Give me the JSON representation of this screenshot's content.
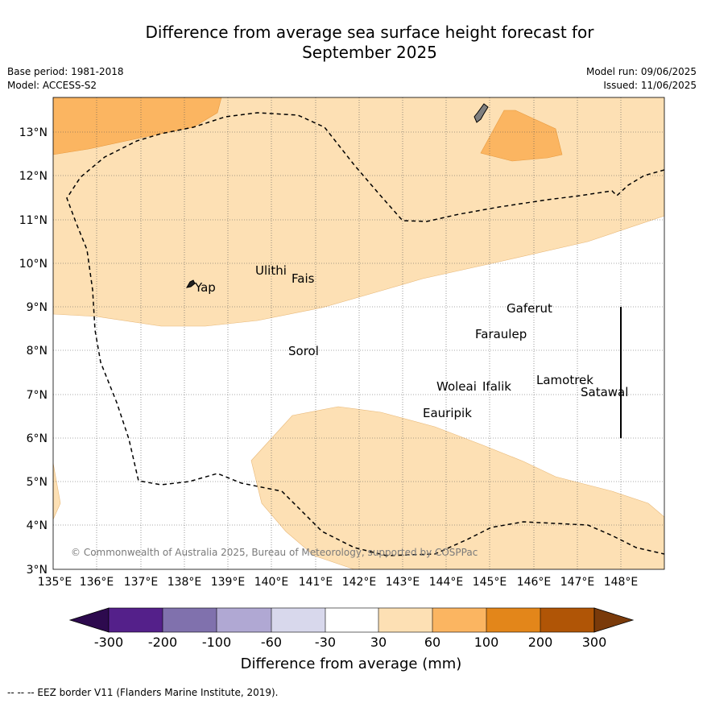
{
  "title_line1": "Difference from average sea surface height forecast for",
  "title_line2": "September 2025",
  "base_period": "Base period: 1981-2018",
  "model": "Model: ACCESS-S2",
  "model_run": "Model run: 09/06/2025",
  "issued": "Issued: 11/06/2025",
  "copyright": "© Commonwealth of Australia 2025, Bureau of Meteorology, supported by COSPPac",
  "footnote": "--  --  -- EEZ border V11 (Flanders Marine Institute, 2019).",
  "map": {
    "lon_range": [
      135,
      149
    ],
    "lat_range": [
      3,
      13.8
    ],
    "lon_ticks": [
      "135°E",
      "136°E",
      "137°E",
      "138°E",
      "139°E",
      "140°E",
      "141°E",
      "142°E",
      "143°E",
      "144°E",
      "145°E",
      "146°E",
      "147°E",
      "148°E"
    ],
    "lat_ticks": [
      "3°N",
      "4°N",
      "5°N",
      "6°N",
      "7°N",
      "8°N",
      "9°N",
      "10°N",
      "11°N",
      "12°N",
      "13°N"
    ],
    "places": [
      {
        "name": "Yap",
        "lon": 138.3,
        "lat": 9.45
      },
      {
        "name": "Ulithi",
        "lon": 139.6,
        "lat": 9.8
      },
      {
        "name": "Fais",
        "lon": 140.4,
        "lat": 9.6
      },
      {
        "name": "Gaferut",
        "lon": 145.3,
        "lat": 8.9
      },
      {
        "name": "Faraulep",
        "lon": 144.6,
        "lat": 8.35
      },
      {
        "name": "Sorol",
        "lon": 140.4,
        "lat": 8.0
      },
      {
        "name": "Lamotrek",
        "lon": 146.0,
        "lat": 7.3
      },
      {
        "name": "Woleai",
        "lon": 143.8,
        "lat": 7.15
      },
      {
        "name": "Ifalik",
        "lon": 144.8,
        "lat": 7.15
      },
      {
        "name": "Satawal",
        "lon": 147.1,
        "lat": 7.0
      },
      {
        "name": "Eauripik",
        "lon": 143.3,
        "lat": 6.5
      }
    ]
  },
  "colorbar": {
    "ticks": [
      "-300",
      "-200",
      "-100",
      "-60",
      "-30",
      "30",
      "60",
      "100",
      "200",
      "300"
    ],
    "colors": [
      "#2d0a4e",
      "#54208a",
      "#8071ad",
      "#b0a8d3",
      "#d8d8ec",
      "#ffffff",
      "#fde0b4",
      "#fbb561",
      "#e3861a",
      "#b05506",
      "#7a3a0a"
    ],
    "label": "Difference from average (mm)"
  }
}
